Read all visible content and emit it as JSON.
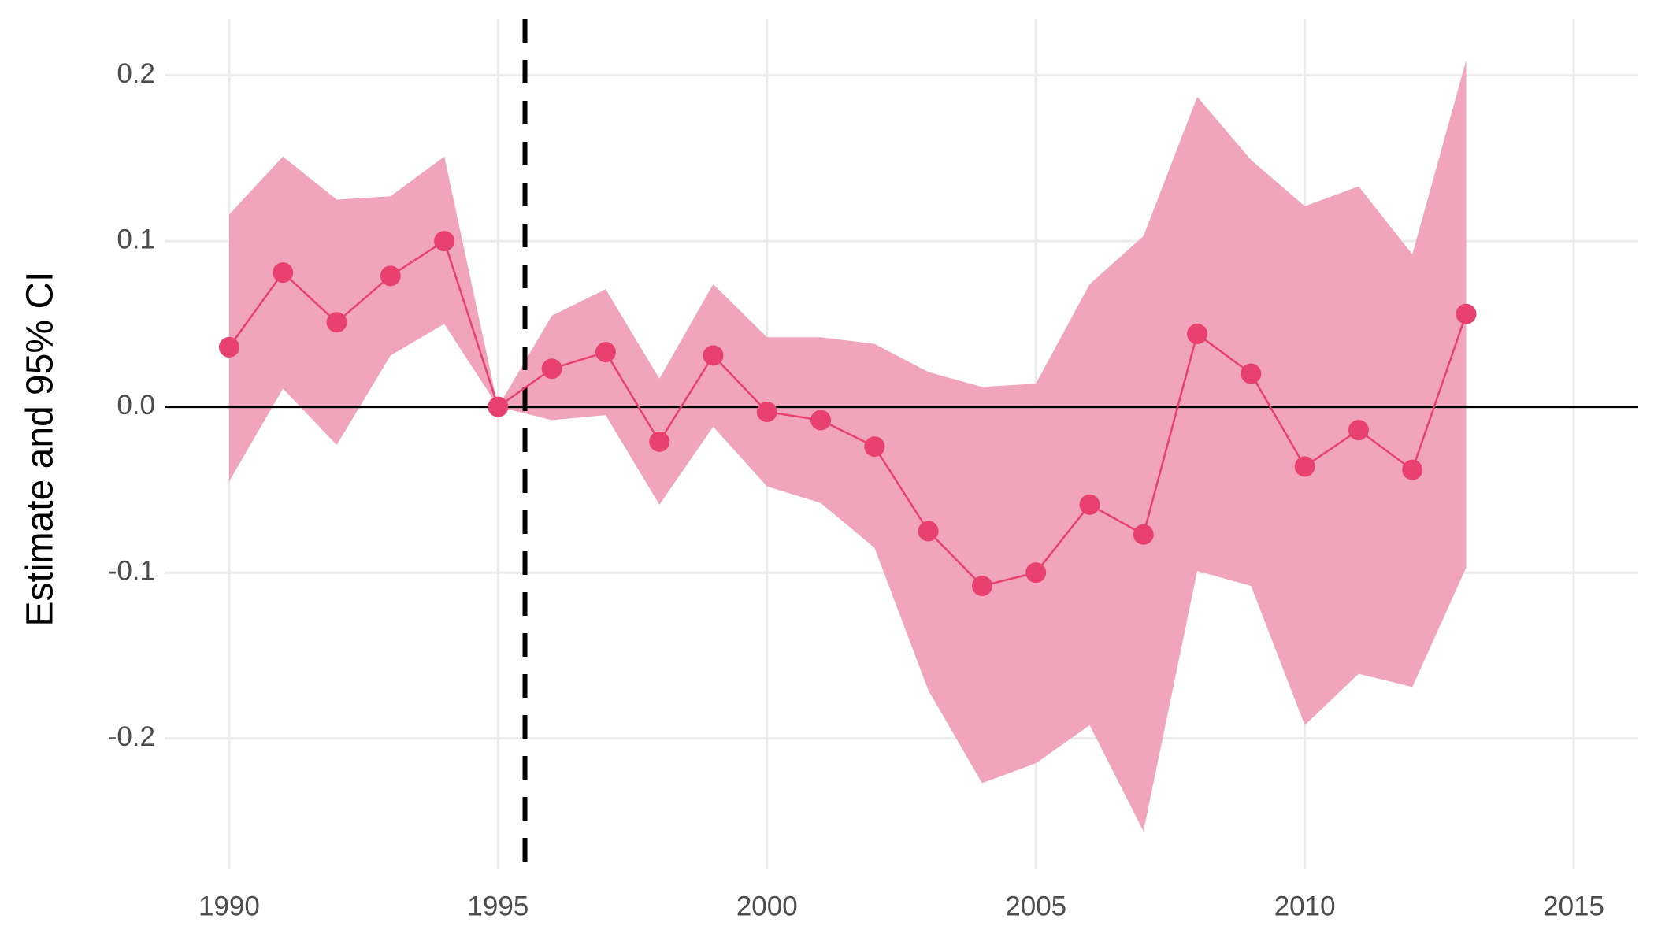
{
  "chart_data": {
    "type": "line",
    "y_label": "Estimate and 95% CI",
    "x": [
      1990,
      1991,
      1992,
      1993,
      1994,
      1995,
      1996,
      1997,
      1998,
      1999,
      2000,
      2001,
      2002,
      2003,
      2004,
      2005,
      2006,
      2007,
      2008,
      2009,
      2010,
      2011,
      2012,
      2013
    ],
    "estimate": [
      0.036,
      0.081,
      0.051,
      0.079,
      0.1,
      0.0,
      0.023,
      0.033,
      -0.021,
      0.031,
      -0.003,
      -0.008,
      -0.024,
      -0.075,
      -0.108,
      -0.1,
      -0.059,
      -0.077,
      0.044,
      0.02,
      -0.036,
      -0.014,
      -0.038,
      0.056
    ],
    "ci_lower": [
      -0.045,
      0.011,
      -0.023,
      0.031,
      0.05,
      0.0,
      -0.008,
      -0.005,
      -0.059,
      -0.012,
      -0.048,
      -0.058,
      -0.085,
      -0.171,
      -0.227,
      -0.215,
      -0.192,
      -0.256,
      -0.099,
      -0.108,
      -0.192,
      -0.161,
      -0.169,
      -0.097
    ],
    "ci_upper": [
      0.116,
      0.151,
      0.125,
      0.127,
      0.151,
      0.0,
      0.055,
      0.071,
      0.017,
      0.074,
      0.042,
      0.042,
      0.038,
      0.021,
      0.012,
      0.014,
      0.074,
      0.103,
      0.187,
      0.149,
      0.121,
      0.133,
      0.092,
      0.209
    ],
    "color": "#e8416f",
    "ci_color": "#f0a0b8",
    "xlim": [
      1988.8,
      2016.2
    ],
    "ylim": [
      -0.279,
      0.234
    ],
    "xticks": [
      1990,
      1995,
      2000,
      2005,
      2010,
      2015
    ],
    "yticks": [
      {
        "value": -0.2,
        "label": "-0.2"
      },
      {
        "value": -0.1,
        "label": "-0.1"
      },
      {
        "value": 0,
        "label": "0.0"
      },
      {
        "value": 0.1,
        "label": "0.1"
      },
      {
        "value": 0.2,
        "label": "0.2"
      }
    ],
    "vline": 1995.5,
    "hline": 0,
    "grid": true
  }
}
